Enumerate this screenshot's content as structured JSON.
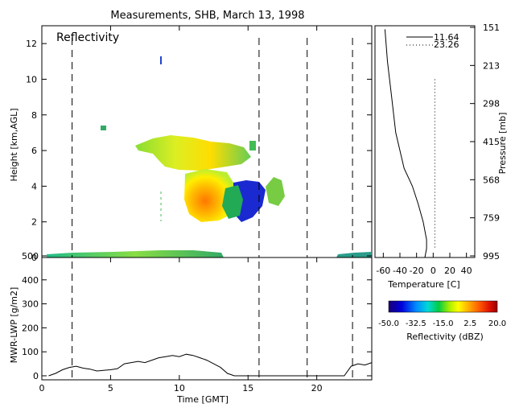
{
  "title": "Measurements, SHB, March 13, 1998",
  "top_panel": {
    "label": "Reflectivity",
    "ylabel": "Height [km,AGL]",
    "y_ticks": [
      "0",
      "2",
      "4",
      "6",
      "8",
      "10",
      "12"
    ],
    "ylim": [
      0,
      13
    ]
  },
  "bottom_panel": {
    "ylabel": "MWR-LWP [g/m2]",
    "y_ticks": [
      "0",
      "100",
      "200",
      "300",
      "400",
      "500"
    ],
    "ylim": [
      0,
      510
    ],
    "xlabel": "Time [GMT]",
    "x_ticks": [
      "0",
      "5",
      "10",
      "15",
      "20"
    ],
    "xlim": [
      0,
      24
    ]
  },
  "profile_panel": {
    "xlabel": "Temperature [C]",
    "x_ticks": [
      "-60",
      "-40",
      "-20",
      "0",
      "20",
      "40"
    ],
    "xlim": [
      -70,
      50
    ],
    "pressure_label": "Pressure [mb]",
    "pressure_ticks": [
      "151",
      "213",
      "298",
      "415",
      "568",
      "759",
      "995"
    ],
    "legend": [
      {
        "label": "11.64",
        "style": "solid"
      },
      {
        "label": "23.26",
        "style": "dotted"
      }
    ]
  },
  "colorbar": {
    "title": "Reflectivity (dBZ)",
    "tick_labels": [
      "-50.0",
      "-32.5",
      "-15.0",
      "2.5",
      "20.0"
    ],
    "range": [
      -50,
      20
    ]
  },
  "chart_data": {
    "type": "line",
    "title": "Measurements, SHB, March 13, 1998",
    "xlabel": "Time [GMT]",
    "ylabel": "MWR-LWP [g/m2]",
    "xlim": [
      0,
      24
    ],
    "ylim": [
      0,
      510
    ],
    "grid": false,
    "sounding_times": [
      2.2,
      15.8,
      19.3,
      22.6
    ],
    "series": [
      {
        "name": "MWR-LWP",
        "x": [
          0.5,
          1.0,
          1.5,
          2.0,
          2.5,
          3.0,
          3.5,
          4.0,
          5.0,
          5.5,
          6.0,
          7.0,
          7.5,
          8.0,
          8.5,
          9.0,
          9.5,
          10.0,
          10.5,
          11.0,
          11.5,
          12.0,
          12.5,
          13.0,
          13.5,
          14.0,
          22.0,
          22.5,
          23.0,
          23.5,
          24.0
        ],
        "y": [
          0,
          10,
          25,
          35,
          40,
          32,
          28,
          20,
          25,
          30,
          50,
          60,
          55,
          65,
          75,
          80,
          85,
          80,
          90,
          85,
          75,
          65,
          50,
          35,
          10,
          0,
          0,
          40,
          50,
          45,
          55
        ]
      }
    ],
    "temperature_profiles": [
      {
        "name": "11.64",
        "temperature": [
          -58,
          -55,
          -50,
          -45,
          -35,
          -25,
          -18,
          -12,
          -8,
          -8,
          -10
        ],
        "height": [
          12.8,
          11.0,
          9.0,
          7.0,
          5.0,
          4.0,
          3.0,
          2.0,
          1.0,
          0.5,
          0.0
        ]
      },
      {
        "name": "23.26",
        "temperature": [
          2,
          2,
          2,
          2,
          2,
          2,
          2,
          2,
          2
        ],
        "height": [
          10.0,
          9.0,
          7.0,
          5.0,
          4.0,
          3.0,
          2.0,
          1.0,
          0.5
        ]
      }
    ]
  }
}
